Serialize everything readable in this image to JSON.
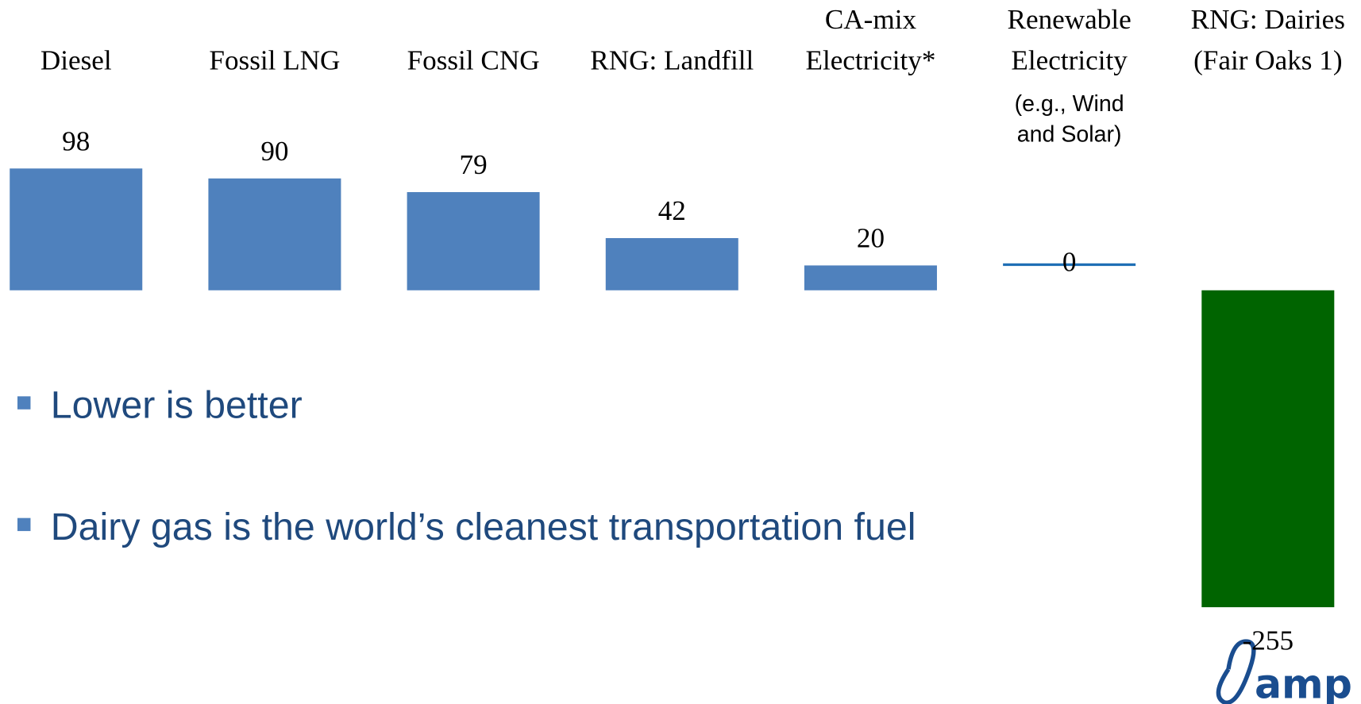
{
  "chart_data": {
    "type": "bar",
    "categories": [
      "Diesel",
      "Fossil LNG",
      "Fossil CNG",
      "RNG: Landfill",
      "CA-mix\nElectricity*",
      "Renewable\nElectricity",
      "RNG: Dairies\n(Fair Oaks 1)"
    ],
    "values": [
      98,
      90,
      79,
      42,
      20,
      0,
      -255
    ],
    "colors": [
      "#4f81bd",
      "#4f81bd",
      "#4f81bd",
      "#4f81bd",
      "#4f81bd",
      "#1f6fb5",
      "#006400"
    ],
    "annotation": "(e.g., Wind\nand Solar)",
    "bullets": [
      "Lower is better",
      "Dairy gas is the world’s cleanest transportation fuel"
    ],
    "logo_text": "amp"
  }
}
